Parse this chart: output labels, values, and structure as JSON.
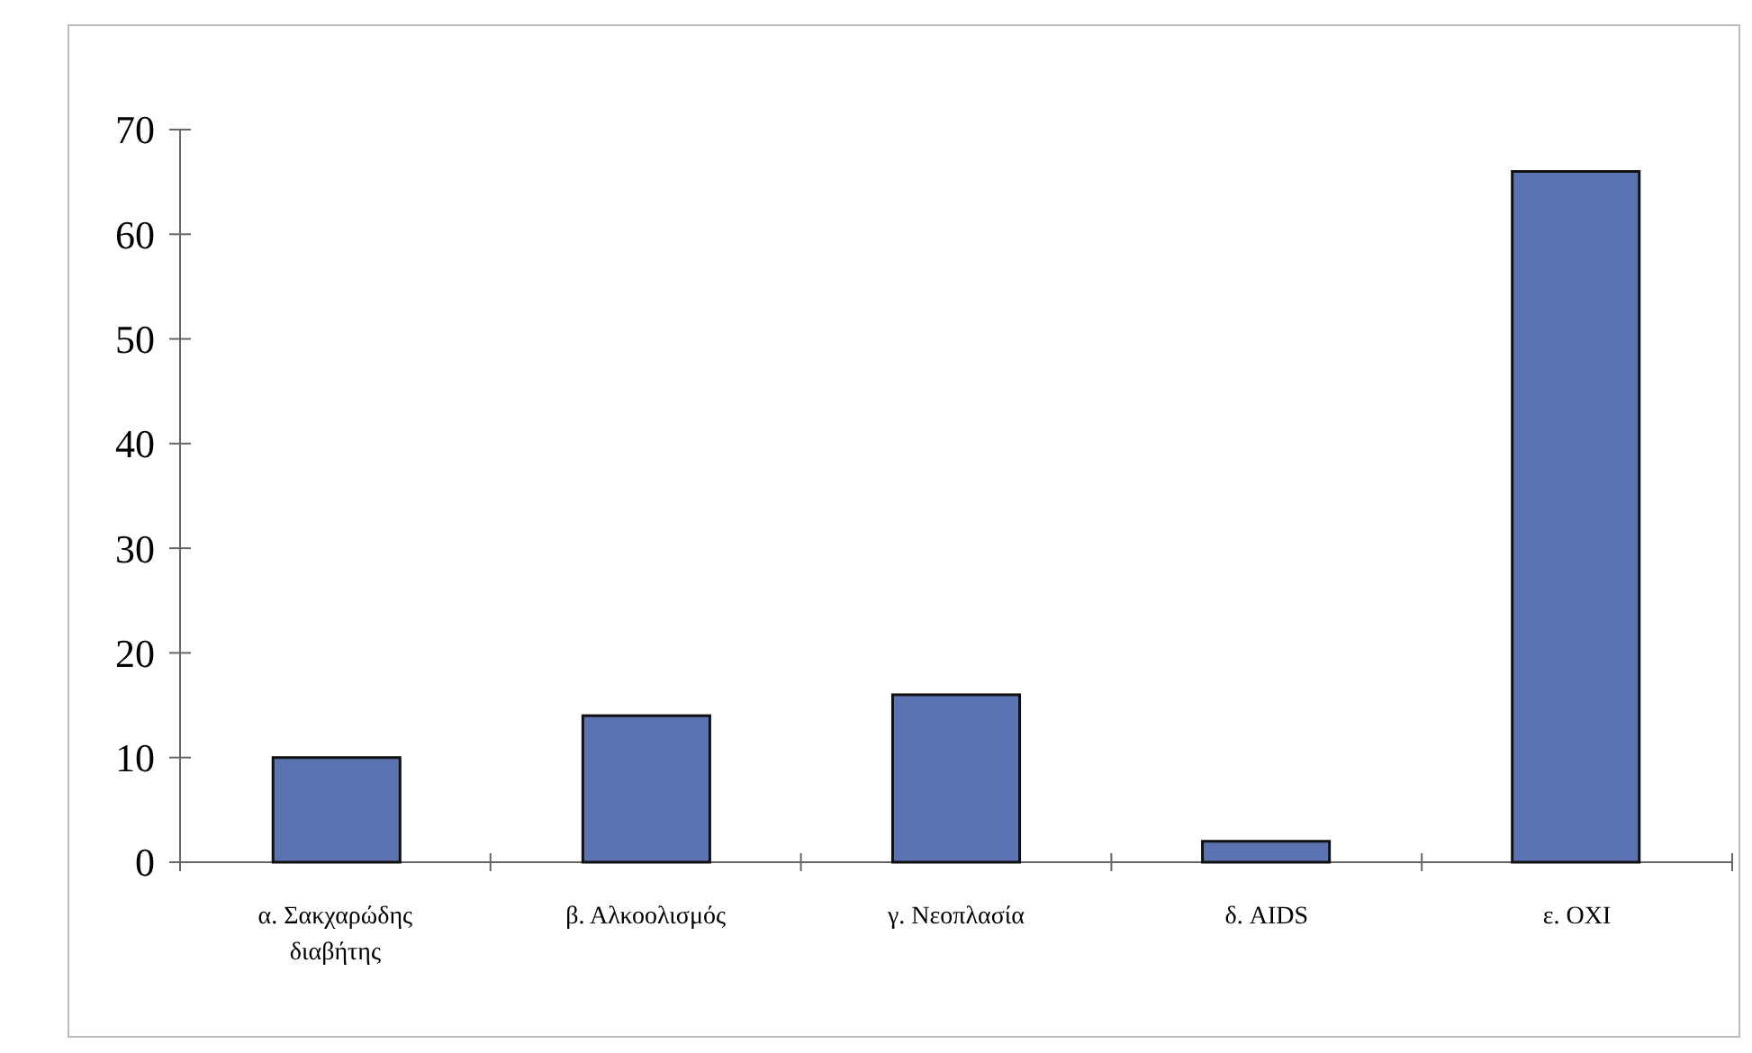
{
  "chart_data": {
    "type": "bar",
    "categories": [
      "α. Σακχαρώδης διαβήτης",
      "β. Αλκοολισμός",
      "γ. Νεοπλασία",
      "δ. AIDS",
      "ε. ΟΧΙ"
    ],
    "values": [
      10,
      14,
      16,
      2,
      66
    ],
    "color": "#5b73b0",
    "ylim": [
      0,
      70
    ],
    "yticks": [
      0,
      10,
      20,
      30,
      40,
      50,
      60,
      70
    ],
    "grid": false
  }
}
